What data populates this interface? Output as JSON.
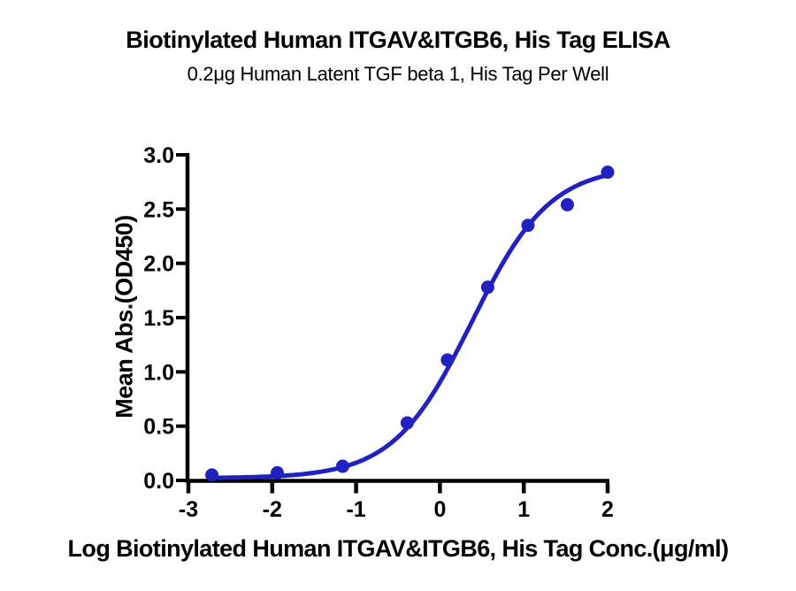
{
  "header": {
    "title": "Biotinylated Human ITGAV&ITGB6, His Tag ELISA",
    "subtitle": "0.2μg Human Latent TGF beta 1, His Tag Per Well"
  },
  "chart_data": {
    "type": "scatter",
    "title": "Biotinylated Human ITGAV&ITGB6, His Tag ELISA",
    "subtitle": "0.2μg Human Latent TGF beta 1, His Tag Per Well",
    "xlabel": "Log Biotinylated Human ITGAV&ITGB6, His Tag Conc.(μg/ml)",
    "ylabel": "Mean Abs.(OD450)",
    "xlim": [
      -3,
      2
    ],
    "ylim": [
      0,
      3
    ],
    "xticks": [
      -3,
      -2,
      -1,
      0,
      1,
      2
    ],
    "xtick_labels": [
      "-3",
      "-2",
      "-1",
      "0",
      "1",
      "2"
    ],
    "yticks": [
      0,
      0.5,
      1.0,
      1.5,
      2.0,
      2.5,
      3.0
    ],
    "ytick_labels": [
      "0.0",
      "0.5",
      "1.0",
      "1.5",
      "2.0",
      "2.5",
      "3.0"
    ],
    "grid": false,
    "legend": false,
    "points": {
      "x": [
        -2.72,
        -1.94,
        -1.16,
        -0.39,
        0.09,
        0.57,
        1.05,
        1.52,
        2.0
      ],
      "y": [
        0.05,
        0.07,
        0.13,
        0.53,
        1.11,
        1.78,
        2.35,
        2.54,
        2.84
      ]
    },
    "fit_curve": {
      "model": "4PL",
      "bottom": 0.02,
      "top": 2.9,
      "log_ec50": 0.38,
      "hill": 0.93,
      "x_range": [
        -2.73,
        2.0
      ]
    },
    "colors": {
      "series_blue": "#2121C1",
      "axis_black": "#000000",
      "background": "#FFFFFF"
    }
  }
}
